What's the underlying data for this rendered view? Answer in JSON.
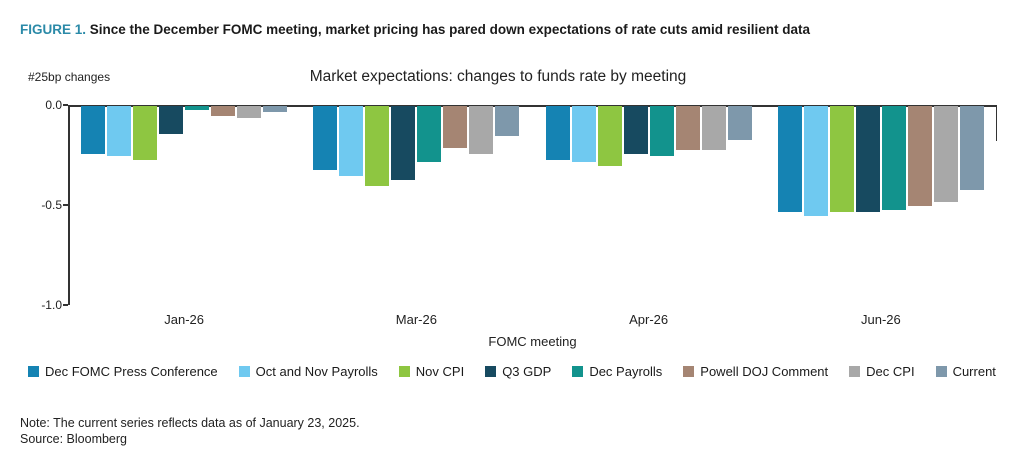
{
  "figure": {
    "label": "FIGURE 1.",
    "title": "Since the December FOMC meeting, market pricing has pared down expectations of rate cuts amid resilient data"
  },
  "chart": {
    "corner_label": "#25bp changes",
    "title": "Market expectations: changes to funds rate by meeting",
    "x_axis_label": "FOMC meeting",
    "y_ticks": [
      {
        "label": "0.0",
        "value": 0.0
      },
      {
        "label": "-0.5",
        "value": -0.5
      },
      {
        "label": "-1.0",
        "value": -1.0
      }
    ]
  },
  "chart_data": {
    "type": "bar",
    "title": "Market expectations: changes to funds rate by meeting",
    "xlabel": "FOMC meeting",
    "ylabel": "#25bp changes",
    "ylim": [
      -1.0,
      0.0
    ],
    "grid": false,
    "legend_position": "bottom",
    "categories": [
      "Jan-26",
      "Mar-26",
      "Apr-26",
      "Jun-26"
    ],
    "series": [
      {
        "name": "Dec FOMC Press Conference",
        "color": "#1583b3",
        "values": [
          -0.24,
          -0.32,
          -0.27,
          -0.53
        ]
      },
      {
        "name": "Oct and Nov Payrolls",
        "color": "#6fc9f0",
        "values": [
          -0.25,
          -0.35,
          -0.28,
          -0.55
        ]
      },
      {
        "name": "Nov CPI",
        "color": "#8ec641",
        "values": [
          -0.27,
          -0.4,
          -0.3,
          -0.53
        ]
      },
      {
        "name": "Q3 GDP",
        "color": "#174a60",
        "values": [
          -0.14,
          -0.37,
          -0.24,
          -0.53
        ]
      },
      {
        "name": "Dec Payrolls",
        "color": "#12938d",
        "values": [
          -0.02,
          -0.28,
          -0.25,
          -0.52
        ]
      },
      {
        "name": "Powell DOJ Comment",
        "color": "#a58573",
        "values": [
          -0.05,
          -0.21,
          -0.22,
          -0.5
        ]
      },
      {
        "name": "Dec CPI",
        "color": "#a8a8a8",
        "values": [
          -0.06,
          -0.24,
          -0.22,
          -0.48
        ]
      },
      {
        "name": "Current",
        "color": "#7e98ab",
        "values": [
          -0.03,
          -0.15,
          -0.17,
          -0.42
        ]
      }
    ]
  },
  "footer": {
    "note": "Note: The current series reflects data as of January 23, 2025.",
    "source": "Source: Bloomberg"
  }
}
